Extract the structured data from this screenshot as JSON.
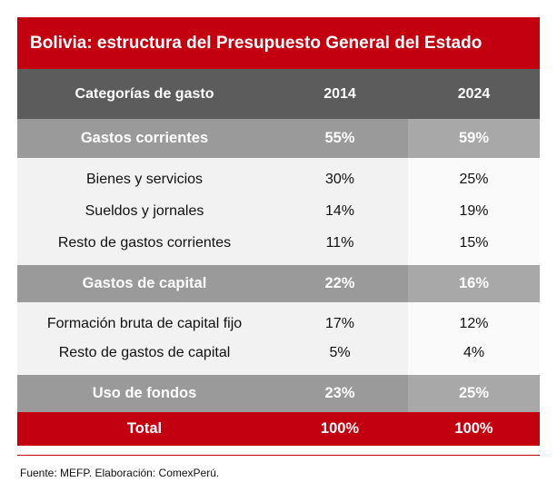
{
  "title": "Bolivia: estructura del Presupuesto General del Estado",
  "headers": [
    "Categorías de gasto",
    "2014",
    "2024"
  ],
  "rows": [
    {
      "type": "category",
      "label": "Gastos corrientes",
      "v2014": "55%",
      "v2024": "59%"
    },
    {
      "type": "sub",
      "label": "Bienes y servicios",
      "v2014": "30%",
      "v2024": "25%"
    },
    {
      "type": "sub",
      "label": "Sueldos y jornales",
      "v2014": "14%",
      "v2024": "19%"
    },
    {
      "type": "sub",
      "label": "Resto de gastos corrientes",
      "v2014": "11%",
      "v2024": "15%"
    },
    {
      "type": "category",
      "label": "Gastos de capital",
      "v2014": "22%",
      "v2024": "16%"
    },
    {
      "type": "sub",
      "label": "Formación bruta de capital fijo",
      "v2014": "17%",
      "v2024": "12%"
    },
    {
      "type": "sub",
      "label": "Resto de gastos de capital",
      "v2014": "5%",
      "v2024": "4%"
    },
    {
      "type": "category",
      "label": "Uso de fondos",
      "v2014": "23%",
      "v2024": "25%"
    },
    {
      "type": "total",
      "label": "Total",
      "v2014": "100%",
      "v2024": "100%"
    }
  ],
  "source": "Fuente: MEFP. Elaboración: ComexPerú.",
  "colors": {
    "accent": "#c3000f",
    "header": "#5c5c5c",
    "category": "#9a9a9a"
  }
}
